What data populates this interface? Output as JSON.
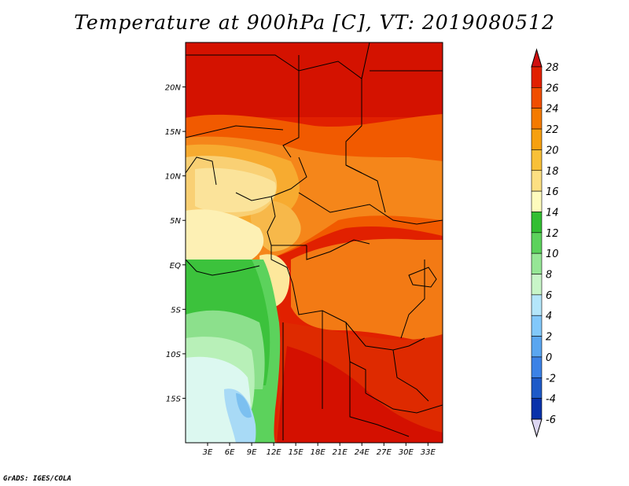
{
  "title": "Temperature at 900hPa [C], VT: 2019080512",
  "credit": "GrADS: IGES/COLA",
  "map": {
    "lon_range": [
      0,
      35
    ],
    "lat_range": [
      -20,
      25
    ],
    "lat_ticks": [
      {
        "value": 20,
        "label": "20N"
      },
      {
        "value": 15,
        "label": "15N"
      },
      {
        "value": 10,
        "label": "10N"
      },
      {
        "value": 5,
        "label": "5N"
      },
      {
        "value": 0,
        "label": "EQ"
      },
      {
        "value": -5,
        "label": "5S"
      },
      {
        "value": -10,
        "label": "10S"
      },
      {
        "value": -15,
        "label": "15S"
      }
    ],
    "lon_ticks": [
      {
        "value": 3,
        "label": "3E"
      },
      {
        "value": 6,
        "label": "6E"
      },
      {
        "value": 9,
        "label": "9E"
      },
      {
        "value": 12,
        "label": "12E"
      },
      {
        "value": 15,
        "label": "15E"
      },
      {
        "value": 18,
        "label": "18E"
      },
      {
        "value": 21,
        "label": "21E"
      },
      {
        "value": 24,
        "label": "24E"
      },
      {
        "value": 27,
        "label": "27E"
      },
      {
        "value": 30,
        "label": "30E"
      },
      {
        "value": 33,
        "label": "33E"
      }
    ]
  },
  "colorbar": {
    "levels": [
      "28",
      "26",
      "24",
      "22",
      "20",
      "18",
      "16",
      "14",
      "12",
      "10",
      "8",
      "6",
      "4",
      "2",
      "0",
      "-2",
      "-4",
      "-6"
    ],
    "colors": [
      "#c00000",
      "#e12000",
      "#f04e00",
      "#f47a00",
      "#f6a010",
      "#f8c038",
      "#fcdf82",
      "#fefbbd",
      "#32be32",
      "#5cd25c",
      "#96e696",
      "#c8f5c8",
      "#b4e6fa",
      "#82c8fa",
      "#5aa6f0",
      "#3c82e6",
      "#1e5ac8",
      "#0a32aa",
      "#000c6e",
      "#e6e0f6"
    ],
    "top_color": "#d01010",
    "bottom_color": "#dcd6f2"
  }
}
